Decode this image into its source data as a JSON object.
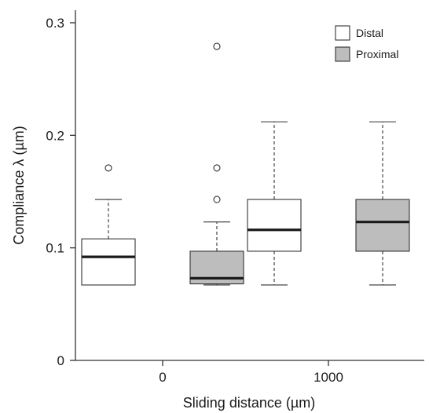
{
  "chart_data": {
    "type": "boxplot",
    "title": "",
    "xlabel": "Sliding distance (µm)",
    "ylabel": "Compliance λ (µm)",
    "ylim": [
      0,
      0.31
    ],
    "yticks": [
      0,
      0.1,
      0.2,
      0.3
    ],
    "ytick_labels": [
      "0",
      "0.1",
      "0.2",
      "0.3"
    ],
    "categories": [
      "0",
      "1000"
    ],
    "legend_position": "top-right",
    "series": [
      {
        "name": "Distal",
        "color": "#ffffff",
        "boxes": [
          {
            "category": "0",
            "whisker_low": 0.067,
            "q1": 0.067,
            "median": 0.092,
            "q3": 0.108,
            "whisker_high": 0.143,
            "outliers": [
              0.171
            ]
          },
          {
            "category": "1000",
            "whisker_low": 0.067,
            "q1": 0.097,
            "median": 0.116,
            "q3": 0.143,
            "whisker_high": 0.212,
            "outliers": []
          }
        ]
      },
      {
        "name": "Proximal",
        "color": "#bdbdbd",
        "boxes": [
          {
            "category": "0",
            "whisker_low": 0.067,
            "q1": 0.068,
            "median": 0.073,
            "q3": 0.097,
            "whisker_high": 0.123,
            "outliers": [
              0.143,
              0.171,
              0.279
            ]
          },
          {
            "category": "1000",
            "whisker_low": 0.067,
            "q1": 0.097,
            "median": 0.123,
            "q3": 0.143,
            "whisker_high": 0.212,
            "outliers": []
          }
        ]
      }
    ],
    "colors": {
      "axis": "#333333",
      "median": "#1a1a1a",
      "box_stroke": "#333333"
    }
  }
}
